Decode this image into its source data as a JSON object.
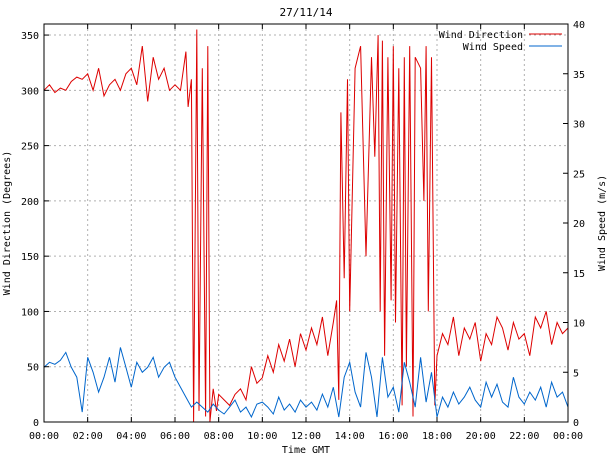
{
  "chart_data": {
    "type": "line",
    "title": "27/11/14",
    "xlabel": "Time GMT",
    "ylabel_left": "Wind Direction (Degrees)",
    "ylabel_right": "Wind Speed (m/s)",
    "x_tick_labels": [
      "00:00",
      "02:00",
      "04:00",
      "06:00",
      "08:00",
      "10:00",
      "12:00",
      "14:00",
      "16:00",
      "18:00",
      "20:00",
      "22:00",
      "00:00"
    ],
    "xlim_hours": [
      0,
      24
    ],
    "ylim_left": [
      0,
      360
    ],
    "ylim_right": [
      0,
      40
    ],
    "y_left_ticks": [
      0,
      50,
      100,
      150,
      200,
      250,
      300,
      350
    ],
    "y_right_ticks": [
      0,
      5,
      10,
      15,
      20,
      25,
      30,
      35,
      40
    ],
    "grid": true,
    "legend_position": "top-right",
    "colors": {
      "direction": "#dd0000",
      "speed": "#0066cc"
    },
    "series": [
      {
        "name": "Wind Direction",
        "axis": "left",
        "x": [
          0,
          0.25,
          0.5,
          0.75,
          1.0,
          1.25,
          1.5,
          1.75,
          2.0,
          2.25,
          2.5,
          2.75,
          3.0,
          3.25,
          3.5,
          3.75,
          4.0,
          4.25,
          4.5,
          4.75,
          5.0,
          5.25,
          5.5,
          5.75,
          6.0,
          6.25,
          6.5,
          6.6,
          6.75,
          6.85,
          7.0,
          7.1,
          7.25,
          7.4,
          7.5,
          7.6,
          7.75,
          7.9,
          8.0,
          8.25,
          8.5,
          8.75,
          9.0,
          9.25,
          9.5,
          9.75,
          10.0,
          10.25,
          10.5,
          10.75,
          11.0,
          11.25,
          11.5,
          11.75,
          12.0,
          12.25,
          12.5,
          12.75,
          13.0,
          13.25,
          13.4,
          13.5,
          13.6,
          13.75,
          13.9,
          14.0,
          14.25,
          14.5,
          14.75,
          15.0,
          15.15,
          15.3,
          15.4,
          15.5,
          15.6,
          15.75,
          15.9,
          16.0,
          16.1,
          16.25,
          16.4,
          16.5,
          16.6,
          16.75,
          16.9,
          17.0,
          17.25,
          17.4,
          17.5,
          17.6,
          17.75,
          17.9,
          18.0,
          18.25,
          18.5,
          18.75,
          19.0,
          19.25,
          19.5,
          19.75,
          20.0,
          20.25,
          20.5,
          20.75,
          21.0,
          21.25,
          21.5,
          21.75,
          22.0,
          22.25,
          22.5,
          22.75,
          23.0,
          23.25,
          23.5,
          23.75,
          24.0
        ],
        "values": [
          300,
          305,
          298,
          302,
          300,
          308,
          312,
          310,
          315,
          300,
          320,
          295,
          305,
          310,
          300,
          315,
          320,
          305,
          340,
          290,
          330,
          310,
          320,
          300,
          305,
          300,
          335,
          285,
          310,
          0,
          355,
          10,
          320,
          5,
          340,
          0,
          30,
          10,
          25,
          20,
          15,
          25,
          30,
          20,
          50,
          35,
          40,
          60,
          45,
          70,
          55,
          75,
          50,
          80,
          65,
          85,
          70,
          95,
          60,
          90,
          110,
          20,
          280,
          130,
          310,
          100,
          320,
          340,
          150,
          330,
          240,
          350,
          100,
          345,
          60,
          330,
          110,
          340,
          90,
          320,
          15,
          330,
          50,
          340,
          5,
          330,
          320,
          200,
          340,
          100,
          330,
          15,
          60,
          80,
          70,
          95,
          60,
          85,
          75,
          90,
          55,
          80,
          70,
          95,
          85,
          65,
          90,
          75,
          80,
          60,
          95,
          85,
          100,
          70,
          90,
          80,
          85
        ]
      },
      {
        "name": "Wind Speed",
        "axis": "right",
        "x": [
          0,
          0.25,
          0.5,
          0.75,
          1.0,
          1.25,
          1.5,
          1.75,
          2.0,
          2.25,
          2.5,
          2.75,
          3.0,
          3.25,
          3.5,
          3.75,
          4.0,
          4.25,
          4.5,
          4.75,
          5.0,
          5.25,
          5.5,
          5.75,
          6.0,
          6.25,
          6.5,
          6.75,
          7.0,
          7.25,
          7.5,
          7.75,
          8.0,
          8.25,
          8.5,
          8.75,
          9.0,
          9.25,
          9.5,
          9.75,
          10.0,
          10.25,
          10.5,
          10.75,
          11.0,
          11.25,
          11.5,
          11.75,
          12.0,
          12.25,
          12.5,
          12.75,
          13.0,
          13.25,
          13.5,
          13.75,
          14.0,
          14.25,
          14.5,
          14.75,
          15.0,
          15.25,
          15.5,
          15.75,
          16.0,
          16.25,
          16.5,
          16.75,
          17.0,
          17.25,
          17.5,
          17.75,
          18.0,
          18.25,
          18.5,
          18.75,
          19.0,
          19.25,
          19.5,
          19.75,
          20.0,
          20.25,
          20.5,
          20.75,
          21.0,
          21.25,
          21.5,
          21.75,
          22.0,
          22.25,
          22.5,
          22.75,
          23.0,
          23.25,
          23.5,
          23.75,
          24.0
        ],
        "values": [
          5.5,
          6.0,
          5.8,
          6.2,
          7.0,
          5.5,
          4.5,
          1.0,
          6.5,
          5.0,
          3.0,
          4.5,
          6.5,
          4.0,
          7.5,
          5.5,
          3.5,
          6.0,
          5.0,
          5.5,
          6.5,
          4.5,
          5.5,
          6.0,
          4.5,
          3.5,
          2.5,
          1.5,
          2.0,
          1.5,
          1.0,
          1.8,
          1.2,
          0.8,
          1.5,
          2.2,
          1.0,
          1.5,
          0.5,
          1.8,
          2.0,
          1.5,
          0.8,
          2.5,
          1.2,
          1.8,
          1.0,
          2.2,
          1.5,
          2.0,
          1.2,
          2.8,
          1.5,
          3.5,
          0.5,
          4.5,
          6.0,
          3.0,
          1.5,
          7.0,
          4.5,
          0.5,
          6.5,
          2.5,
          3.5,
          1.0,
          6.0,
          4.0,
          1.5,
          6.5,
          2.0,
          5.0,
          0.5,
          2.5,
          1.5,
          3.0,
          1.8,
          2.5,
          3.5,
          2.2,
          1.5,
          4.0,
          2.5,
          3.8,
          2.0,
          1.5,
          4.5,
          2.5,
          1.8,
          3.0,
          2.2,
          3.5,
          1.5,
          4.0,
          2.5,
          3.0,
          1.5
        ]
      }
    ]
  }
}
